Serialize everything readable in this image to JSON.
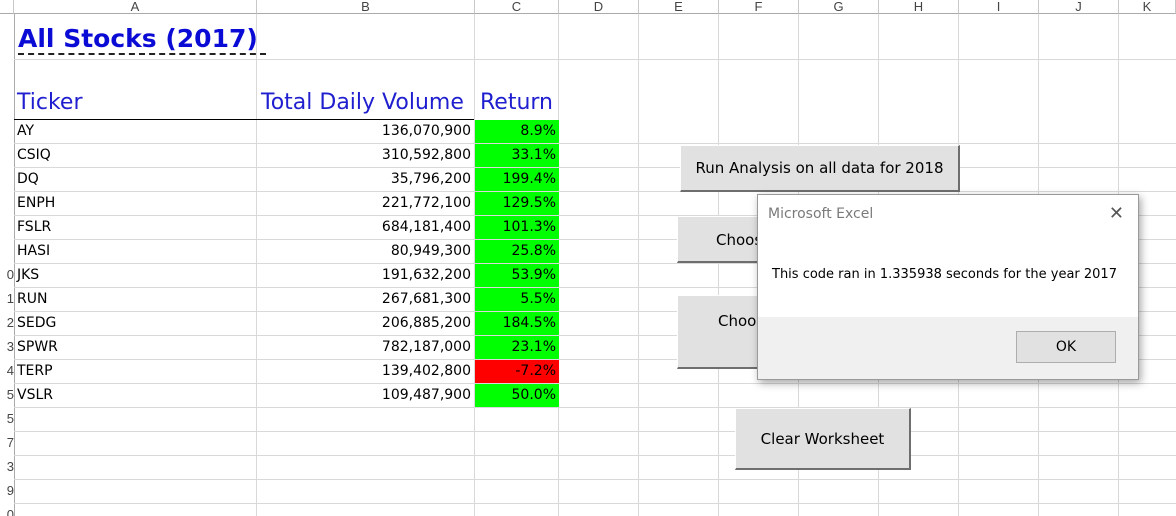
{
  "columns": [
    "A",
    "B",
    "C",
    "D",
    "E",
    "F",
    "G",
    "H",
    "I",
    "J",
    "K"
  ],
  "row_numbers": [
    "0",
    "1",
    "2",
    "3",
    "4",
    "5",
    "5",
    "7",
    "3",
    "9",
    "0"
  ],
  "sheet": {
    "title": "All Stocks (2017)",
    "headers": {
      "ticker": "Ticker",
      "volume": "Total Daily Volume",
      "return": "Return"
    },
    "rows": [
      {
        "ticker": "AY",
        "volume": "136,070,900",
        "return": "8.9%",
        "status": "positive"
      },
      {
        "ticker": "CSIQ",
        "volume": "310,592,800",
        "return": "33.1%",
        "status": "positive"
      },
      {
        "ticker": "DQ",
        "volume": "35,796,200",
        "return": "199.4%",
        "status": "positive"
      },
      {
        "ticker": "ENPH",
        "volume": "221,772,100",
        "return": "129.5%",
        "status": "positive"
      },
      {
        "ticker": "FSLR",
        "volume": "684,181,400",
        "return": "101.3%",
        "status": "positive"
      },
      {
        "ticker": "HASI",
        "volume": "80,949,300",
        "return": "25.8%",
        "status": "positive"
      },
      {
        "ticker": "JKS",
        "volume": "191,632,200",
        "return": "53.9%",
        "status": "positive"
      },
      {
        "ticker": "RUN",
        "volume": "267,681,300",
        "return": "5.5%",
        "status": "positive"
      },
      {
        "ticker": "SEDG",
        "volume": "206,885,200",
        "return": "184.5%",
        "status": "positive"
      },
      {
        "ticker": "SPWR",
        "volume": "782,187,000",
        "return": "23.1%",
        "status": "positive"
      },
      {
        "ticker": "TERP",
        "volume": "139,402,800",
        "return": "-7.2%",
        "status": "negative"
      },
      {
        "ticker": "VSLR",
        "volume": "109,487,900",
        "return": "50.0%",
        "status": "positive"
      }
    ]
  },
  "buttons": {
    "run_all": "Run Analysis on all data for 2018",
    "choose1": "Choos",
    "choose2": "Choos",
    "clear": "Clear Worksheet"
  },
  "dialog": {
    "title": "Microsoft Excel",
    "message": "This code ran in 1.335938 seconds for the year 2017",
    "ok": "OK",
    "close_icon": "close-icon"
  },
  "colors": {
    "positive": "#00ff00",
    "negative": "#ff0000",
    "title": "#0b0bd6",
    "header": "#1f1fd0"
  }
}
